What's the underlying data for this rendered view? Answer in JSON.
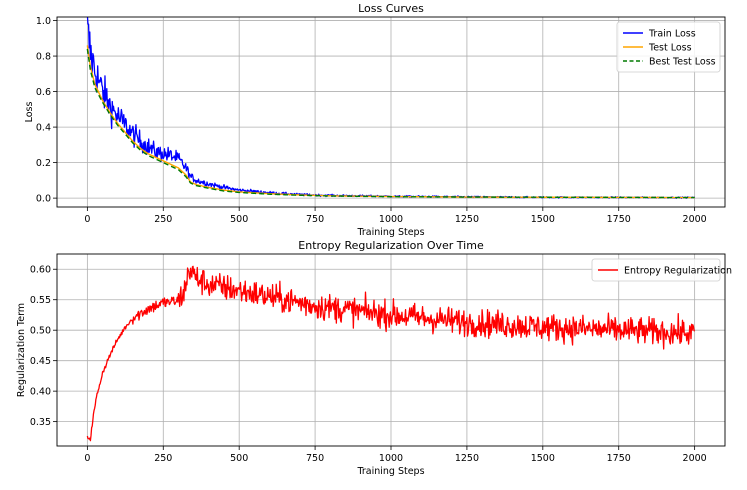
{
  "chart_data": [
    {
      "type": "line",
      "title": "Loss Curves",
      "xlabel": "Training Steps",
      "ylabel": "Loss",
      "xlim": [
        -100,
        2100
      ],
      "ylim": [
        -0.05,
        1.02
      ],
      "xticks": [
        0,
        250,
        500,
        750,
        1000,
        1250,
        1500,
        1750,
        2000
      ],
      "yticks": [
        0.0,
        0.2,
        0.4,
        0.6,
        0.8,
        1.0
      ],
      "grid": true,
      "legend_position": "top-right",
      "series": [
        {
          "name": "Train Loss",
          "color": "#0000ff",
          "style": "solid",
          "noise": true,
          "x": [
            0,
            10,
            25,
            50,
            75,
            100,
            125,
            150,
            175,
            200,
            225,
            250,
            275,
            300,
            325,
            340,
            360,
            400,
            450,
            500,
            600,
            700,
            800,
            1000,
            1250,
            1500,
            1750,
            2000
          ],
          "y": [
            0.95,
            0.82,
            0.72,
            0.6,
            0.52,
            0.46,
            0.41,
            0.36,
            0.32,
            0.29,
            0.26,
            0.25,
            0.24,
            0.22,
            0.17,
            0.12,
            0.1,
            0.08,
            0.06,
            0.045,
            0.03,
            0.02,
            0.015,
            0.01,
            0.007,
            0.005,
            0.004,
            0.003
          ]
        },
        {
          "name": "Test Loss",
          "color": "#ffa500",
          "style": "solid",
          "x": [
            0,
            10,
            25,
            50,
            75,
            100,
            125,
            150,
            175,
            200,
            225,
            250,
            275,
            300,
            325,
            340,
            360,
            400,
            450,
            500,
            600,
            700,
            800,
            1000,
            1250,
            1500,
            1750,
            2000
          ],
          "y": [
            0.86,
            0.74,
            0.64,
            0.55,
            0.48,
            0.42,
            0.37,
            0.32,
            0.28,
            0.25,
            0.23,
            0.21,
            0.19,
            0.17,
            0.13,
            0.09,
            0.075,
            0.06,
            0.045,
            0.035,
            0.025,
            0.018,
            0.013,
            0.009,
            0.006,
            0.005,
            0.004,
            0.003
          ]
        },
        {
          "name": "Best Test Loss",
          "color": "#007a00",
          "style": "dashed",
          "x": [
            0,
            10,
            25,
            50,
            75,
            100,
            125,
            150,
            175,
            200,
            225,
            250,
            275,
            300,
            325,
            340,
            360,
            400,
            450,
            500,
            600,
            700,
            800,
            1000,
            1250,
            1500,
            1750,
            2000
          ],
          "y": [
            0.84,
            0.72,
            0.62,
            0.54,
            0.47,
            0.41,
            0.36,
            0.31,
            0.27,
            0.24,
            0.22,
            0.2,
            0.18,
            0.16,
            0.12,
            0.085,
            0.07,
            0.055,
            0.04,
            0.032,
            0.022,
            0.016,
            0.012,
            0.008,
            0.006,
            0.005,
            0.004,
            0.003
          ]
        }
      ]
    },
    {
      "type": "line",
      "title": "Entropy Regularization Over Time",
      "xlabel": "Training Steps",
      "ylabel": "Regularization Term",
      "xlim": [
        -100,
        2100
      ],
      "ylim": [
        0.31,
        0.625
      ],
      "xticks": [
        0,
        250,
        500,
        750,
        1000,
        1250,
        1500,
        1750,
        2000
      ],
      "yticks": [
        0.35,
        0.4,
        0.45,
        0.5,
        0.55,
        0.6
      ],
      "grid": true,
      "legend_position": "top-right",
      "series": [
        {
          "name": "Entropy Regularization",
          "color": "#ff0000",
          "style": "solid",
          "noise": true,
          "x": [
            0,
            10,
            20,
            30,
            50,
            75,
            100,
            125,
            150,
            200,
            250,
            300,
            320,
            335,
            345,
            360,
            400,
            500,
            600,
            750,
            1000,
            1250,
            1500,
            1750,
            2000
          ],
          "y": [
            0.325,
            0.322,
            0.36,
            0.39,
            0.43,
            0.46,
            0.485,
            0.505,
            0.52,
            0.535,
            0.545,
            0.548,
            0.565,
            0.6,
            0.595,
            0.585,
            0.575,
            0.565,
            0.555,
            0.54,
            0.525,
            0.513,
            0.505,
            0.5,
            0.495
          ]
        }
      ]
    }
  ]
}
